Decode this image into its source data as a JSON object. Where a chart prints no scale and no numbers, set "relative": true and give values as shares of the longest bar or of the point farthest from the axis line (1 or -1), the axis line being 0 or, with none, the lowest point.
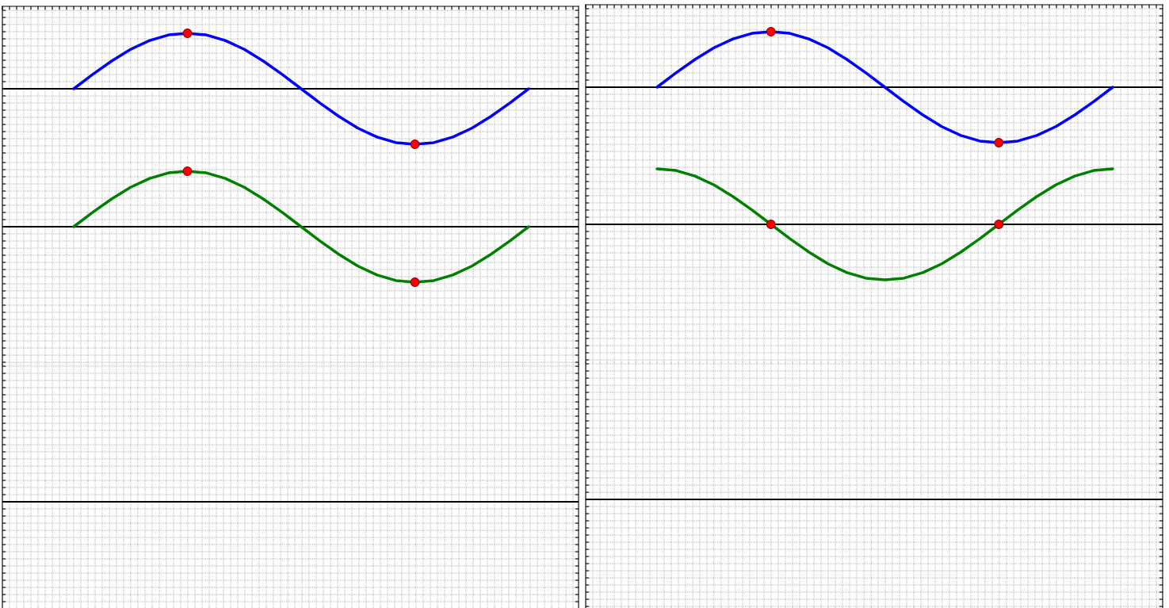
{
  "chart_data": [
    {
      "type": "line",
      "relative": true,
      "grid": true,
      "tick_labels": false,
      "categories": [
        null,
        null,
        null,
        null,
        null,
        null,
        null,
        null,
        null,
        null,
        null,
        null,
        null,
        null,
        null,
        null,
        null,
        null,
        null,
        null,
        null,
        null,
        null,
        null,
        null
      ],
      "series": [
        {
          "color": "#0000ff",
          "values": [
            0,
            0.26,
            0.5,
            0.71,
            0.87,
            0.97,
            1,
            0.97,
            0.87,
            0.71,
            0.5,
            0.26,
            0,
            -0.26,
            -0.5,
            -0.71,
            -0.87,
            -0.97,
            -1,
            -0.97,
            -0.87,
            -0.71,
            -0.5,
            -0.26,
            0
          ]
        }
      ]
    },
    {
      "type": "line",
      "relative": true,
      "grid": true,
      "tick_labels": false,
      "categories": [
        null,
        null,
        null,
        null,
        null,
        null,
        null,
        null,
        null,
        null,
        null,
        null,
        null,
        null,
        null,
        null,
        null,
        null,
        null,
        null,
        null,
        null,
        null,
        null,
        null
      ],
      "series": [
        {
          "color": "#008000",
          "values": [
            0,
            0.26,
            0.5,
            0.71,
            0.87,
            0.97,
            1,
            0.97,
            0.87,
            0.71,
            0.5,
            0.26,
            0,
            -0.26,
            -0.5,
            -0.71,
            -0.87,
            -0.97,
            -1,
            -0.97,
            -0.87,
            -0.71,
            -0.5,
            -0.26,
            0
          ]
        }
      ]
    },
    {
      "type": "other"
    },
    {
      "type": "line",
      "relative": true,
      "grid": true,
      "tick_labels": false,
      "categories": [
        null,
        null,
        null,
        null,
        null,
        null,
        null,
        null,
        null,
        null,
        null,
        null,
        null,
        null,
        null,
        null,
        null,
        null,
        null,
        null,
        null,
        null,
        null,
        null,
        null
      ],
      "series": [
        {
          "color": "#0000ff",
          "values": [
            0,
            0.26,
            0.5,
            0.71,
            0.87,
            0.97,
            1,
            0.97,
            0.87,
            0.71,
            0.5,
            0.26,
            0,
            -0.26,
            -0.5,
            -0.71,
            -0.87,
            -0.97,
            -1,
            -0.97,
            -0.87,
            -0.71,
            -0.5,
            -0.26,
            0
          ]
        }
      ]
    },
    {
      "type": "line",
      "relative": true,
      "grid": true,
      "tick_labels": false,
      "categories": [
        null,
        null,
        null,
        null,
        null,
        null,
        null,
        null,
        null,
        null,
        null,
        null,
        null,
        null,
        null,
        null,
        null,
        null,
        null,
        null,
        null,
        null,
        null,
        null,
        null
      ],
      "series": [
        {
          "color": "#008000",
          "values": [
            1,
            0.97,
            0.87,
            0.71,
            0.5,
            0.26,
            0,
            -0.26,
            -0.5,
            -0.71,
            -0.87,
            -0.97,
            -1,
            -0.97,
            -0.87,
            -0.71,
            -0.5,
            -0.26,
            0,
            0.26,
            0.5,
            0.71,
            0.87,
            0.97,
            1
          ]
        }
      ]
    },
    {
      "type": "other"
    }
  ]
}
